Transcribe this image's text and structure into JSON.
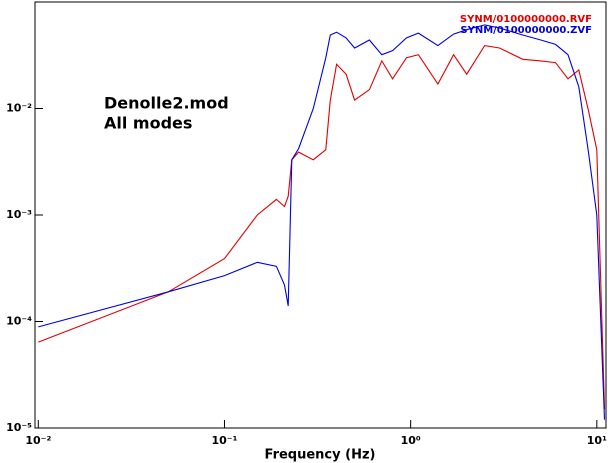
{
  "chart_data": {
    "type": "line",
    "xlabel": "Frequency (Hz)",
    "annotations": [
      "Denolle2.mod",
      "All modes"
    ],
    "xscale": "log",
    "yscale": "log",
    "xlim": [
      0.0096,
      11.2
    ],
    "ylim": [
      1e-05,
      0.1
    ],
    "xticks": [
      {
        "value": 0.01,
        "label": "10⁻²"
      },
      {
        "value": 0.1,
        "label": "10⁻¹"
      },
      {
        "value": 1,
        "label": "10⁰"
      },
      {
        "value": 10,
        "label": "10¹"
      }
    ],
    "yticks": [
      {
        "value": 1e-05,
        "label": "10⁻⁵"
      },
      {
        "value": 0.0001,
        "label": "10⁻⁴"
      },
      {
        "value": 0.001,
        "label": "10⁻³"
      },
      {
        "value": 0.01,
        "label": "10⁻²"
      }
    ],
    "legend": "top-right",
    "x": [
      0.01,
      0.05,
      0.1,
      0.15,
      0.19,
      0.21,
      0.22,
      0.23,
      0.25,
      0.3,
      0.35,
      0.37,
      0.4,
      0.45,
      0.5,
      0.6,
      0.7,
      0.8,
      0.95,
      1.1,
      1.4,
      1.7,
      2.0,
      2.5,
      3.0,
      4.0,
      5.0,
      6.0,
      7.0,
      8.0,
      9.0,
      10.0,
      11.0
    ],
    "series": [
      {
        "name": "SYNM/0100000000.RVF",
        "color": "#e00000",
        "values": [
          6.4e-05,
          0.00019,
          0.00039,
          0.001,
          0.0014,
          0.0012,
          0.0015,
          0.0033,
          0.0039,
          0.0033,
          0.0041,
          0.012,
          0.026,
          0.021,
          0.012,
          0.015,
          0.028,
          0.019,
          0.03,
          0.032,
          0.017,
          0.032,
          0.021,
          0.039,
          0.037,
          0.029,
          0.028,
          0.027,
          0.019,
          0.023,
          0.0097,
          0.0041,
          1.5e-05
        ]
      },
      {
        "name": "SYNM/0100000000.ZVF",
        "color": "#0000e0",
        "values": [
          8.9e-05,
          0.00019,
          0.00027,
          0.00036,
          0.00033,
          0.00022,
          0.00014,
          0.0033,
          0.0042,
          0.01,
          0.03,
          0.049,
          0.052,
          0.046,
          0.037,
          0.044,
          0.032,
          0.035,
          0.046,
          0.051,
          0.039,
          0.05,
          0.055,
          0.061,
          0.057,
          0.049,
          0.044,
          0.04,
          0.032,
          0.016,
          0.004,
          0.001,
          1.2e-05
        ]
      }
    ]
  }
}
